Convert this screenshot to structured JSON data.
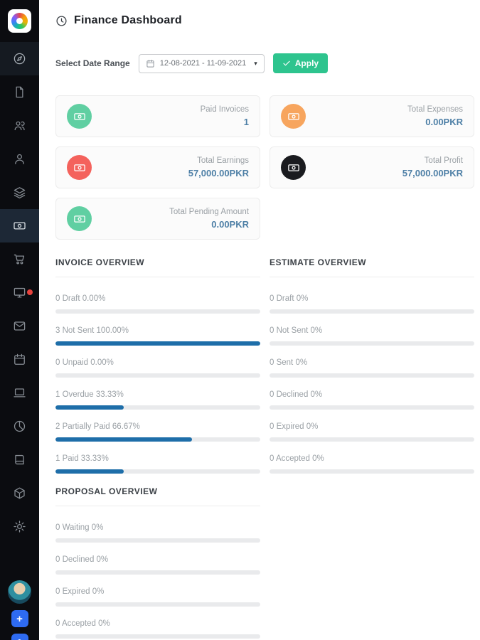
{
  "colors": {
    "accent_green": "#2ec48e",
    "bar_fill": "#1e6ea9",
    "value_text": "#4d7fa6",
    "sidebar_bg": "#0b0c10"
  },
  "header": {
    "title": "Finance Dashboard"
  },
  "filter": {
    "label": "Select Date Range",
    "date_value": "12-08-2021 - 11-09-2021",
    "apply_label": "Apply"
  },
  "cards": [
    {
      "label": "Paid Invoices",
      "value": "1",
      "icon": "banknote-icon",
      "color": "#60cfa2"
    },
    {
      "label": "Total Expenses",
      "value": "0.00PKR",
      "icon": "banknote-icon",
      "color": "#f7a55e"
    },
    {
      "label": "Total Earnings",
      "value": "57,000.00PKR",
      "icon": "banknote-icon",
      "color": "#f4625c"
    },
    {
      "label": "Total Profit",
      "value": "57,000.00PKR",
      "icon": "banknote-icon",
      "color": "#1a1b1f"
    },
    {
      "label": "Total Pending Amount",
      "value": "0.00PKR",
      "icon": "banknote-icon",
      "color": "#60cfa2"
    }
  ],
  "sections": {
    "invoice": {
      "title": "INVOICE OVERVIEW",
      "items": [
        {
          "label": "0 Draft 0.00%",
          "pct": 0
        },
        {
          "label": "3 Not Sent 100.00%",
          "pct": 100
        },
        {
          "label": "0 Unpaid 0.00%",
          "pct": 0
        },
        {
          "label": "1 Overdue 33.33%",
          "pct": 33.33
        },
        {
          "label": "2 Partially Paid 66.67%",
          "pct": 66.67
        },
        {
          "label": "1 Paid 33.33%",
          "pct": 33.33
        }
      ]
    },
    "estimate": {
      "title": "ESTIMATE OVERVIEW",
      "items": [
        {
          "label": "0 Draft 0%",
          "pct": 0
        },
        {
          "label": "0 Not Sent 0%",
          "pct": 0
        },
        {
          "label": "0 Sent 0%",
          "pct": 0
        },
        {
          "label": "0 Declined 0%",
          "pct": 0
        },
        {
          "label": "0 Expired 0%",
          "pct": 0
        },
        {
          "label": "0 Accepted 0%",
          "pct": 0
        }
      ]
    },
    "proposal": {
      "title": "PROPOSAL OVERVIEW",
      "items": [
        {
          "label": "0 Waiting 0%",
          "pct": 0
        },
        {
          "label": "0 Declined 0%",
          "pct": 0
        },
        {
          "label": "0 Expired 0%",
          "pct": 0
        },
        {
          "label": "0 Accepted 0%",
          "pct": 0
        }
      ]
    }
  },
  "sidebar": {
    "icons": [
      "compass",
      "file",
      "users",
      "user",
      "layers",
      "banknote",
      "cart",
      "monitor",
      "envelope",
      "calendar",
      "laptop",
      "pie-chart",
      "book",
      "box",
      "gear",
      "avatar",
      "plus"
    ],
    "active_icon": "banknote",
    "notification_dot_on": "monitor"
  }
}
